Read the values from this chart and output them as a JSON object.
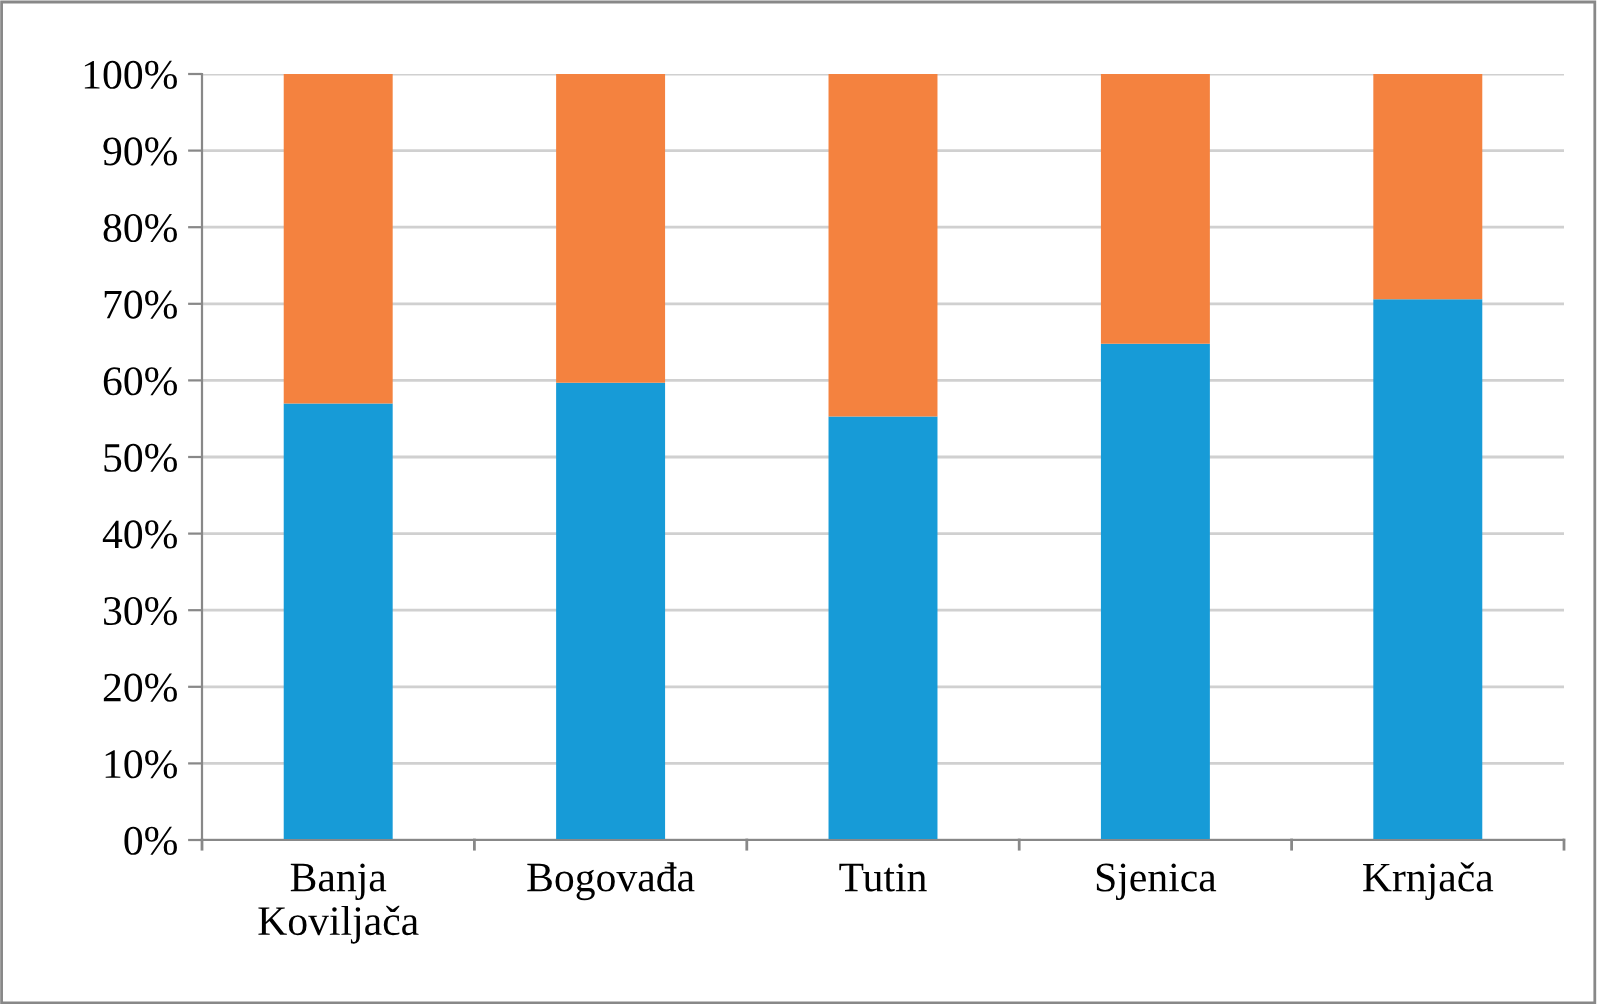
{
  "chart_data": {
    "type": "bar",
    "stacked": true,
    "categories": [
      "Banja\nKoviljača",
      "Bogovađa",
      "Tutin",
      "Sjenica",
      "Krnjača"
    ],
    "series": [
      {
        "color": "#179bd7",
        "values": [
          57.0,
          59.7,
          55.3,
          64.8,
          70.6
        ]
      },
      {
        "color": "#f4823f",
        "values": [
          43.0,
          40.3,
          44.7,
          35.2,
          29.4
        ]
      }
    ],
    "ylim": [
      0,
      100
    ],
    "yticks": [
      {
        "value": 0,
        "label": "0%"
      },
      {
        "value": 10,
        "label": "10%"
      },
      {
        "value": 20,
        "label": "20%"
      },
      {
        "value": 30,
        "label": "30%"
      },
      {
        "value": 40,
        "label": "40%"
      },
      {
        "value": 50,
        "label": "50%"
      },
      {
        "value": 60,
        "label": "60%"
      },
      {
        "value": 70,
        "label": "70%"
      },
      {
        "value": 80,
        "label": "80%"
      },
      {
        "value": 90,
        "label": "90%"
      },
      {
        "value": 100,
        "label": "100%"
      }
    ],
    "grid": "y",
    "legend": false
  }
}
